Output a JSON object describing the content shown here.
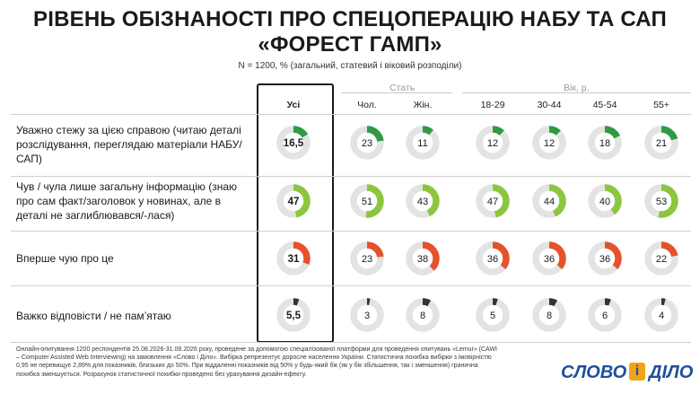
{
  "title_line1": "РІВЕНЬ ОБІЗНАНОСТІ ПРО СПЕЦОПЕРАЦІЮ НАБУ ТА САП",
  "title_line2": "«ФОРЕСТ ГАМП»",
  "subtitle": "N = 1200, % (загальний, статевий і віковий розподіли)",
  "group_labels": {
    "sex": "Стать",
    "age": "Вік, р."
  },
  "colors": {
    "green_dark": "#2e9a43",
    "green_light": "#8cc63f",
    "orange": "#e5522a",
    "dark": "#333333",
    "track": "#e3e3e3"
  },
  "chart_data": {
    "type": "donut-grid",
    "columns": [
      "Усі",
      "Чол.",
      "Жін.",
      "18-29",
      "30-44",
      "45-54",
      "55+"
    ],
    "rows": [
      {
        "label": "Уважно стежу за цією справою (читаю деталі розслідування, переглядаю матеріали НАБУ/САП)",
        "color": "green_dark",
        "values": [
          "16,5",
          "23",
          "11",
          "12",
          "12",
          "18",
          "21"
        ],
        "numeric": [
          16.5,
          23,
          11,
          12,
          12,
          18,
          21
        ]
      },
      {
        "label": "Чув / чула лише загальну інформацію (знаю про сам факт/заголовок у новинах, але в деталі не заглиблювався/-лася)",
        "color": "green_light",
        "values": [
          "47",
          "51",
          "43",
          "47",
          "44",
          "40",
          "53"
        ],
        "numeric": [
          47,
          51,
          43,
          47,
          44,
          40,
          53
        ]
      },
      {
        "label": "Вперше чую про це",
        "color": "orange",
        "values": [
          "31",
          "23",
          "38",
          "36",
          "36",
          "36",
          "22"
        ],
        "numeric": [
          31,
          23,
          38,
          36,
          36,
          36,
          22
        ]
      },
      {
        "label": "Важко відповісти / не пам’ятаю",
        "color": "dark",
        "values": [
          "5,5",
          "3",
          "8",
          "5",
          "8",
          "6",
          "4"
        ],
        "numeric": [
          5.5,
          3,
          8,
          5,
          8,
          6,
          4
        ]
      }
    ]
  },
  "footnote": "Онлайн-опитування 1200 респондентів 25.08.2026-31.08.2026 року, проведене за допомогою спеціалізованої платформи для проведення опитувань «Lemur» (CAWI – Computer Assisted Web Interviewing) на замовлення «Слово і Діло». Вибірка репрезентує доросле населення України. Статистична похибка вибірки з імовірністю 0,95 не перевищує 2,89% для показників, близьких до 50%. При віддаленні показників від 50% у будь-який бік (як у бік збільшення, так і зменшення) гранична похибка зменшується. Розрахунок статистичної похибки проведено без урахування дизайн-ефекту.",
  "logo": {
    "word1": "СЛОВО",
    "mark": "і",
    "word2": "ДІЛО"
  }
}
